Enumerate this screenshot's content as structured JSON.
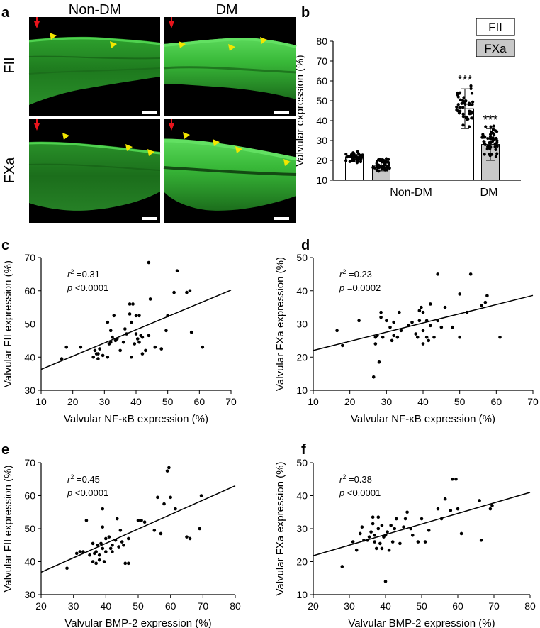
{
  "panel_a": {
    "letter": "a",
    "col_labels": [
      "Non-DM",
      "DM"
    ],
    "row_labels": [
      "FII",
      "FXa"
    ],
    "colors": {
      "tissue": "#2fa82f",
      "bright": "#4fd24f",
      "dark": "#0a2a0a",
      "arrowhead": "#f2e600",
      "arrow": "#e8141c"
    }
  },
  "chart_data": [
    {
      "id": "b",
      "letter": "b",
      "type": "bar",
      "title": "",
      "xlabel": "",
      "ylabel": "Valvular expression (%)",
      "ylim": [
        10,
        80
      ],
      "yticks": [
        10,
        20,
        30,
        40,
        50,
        60,
        70,
        80
      ],
      "groups": [
        "Non-DM",
        "DM"
      ],
      "series": [
        {
          "name": "FII",
          "color": "#ffffff",
          "values": [
            21.5,
            46
          ],
          "sd": [
            2.2,
            10
          ]
        },
        {
          "name": "FXa",
          "color": "#c8c8c8",
          "values": [
            17.5,
            28
          ],
          "sd": [
            2.8,
            8
          ]
        }
      ],
      "annotations": [
        {
          "text": "***",
          "group": 1,
          "series": 0
        },
        {
          "text": "***",
          "group": 1,
          "series": 1
        }
      ]
    },
    {
      "id": "c",
      "letter": "c",
      "type": "scatter",
      "xlabel": "Valvular NF-κB expression (%)",
      "ylabel": "Valvular FII expression (%)",
      "xlim": [
        10,
        70
      ],
      "ylim": [
        30,
        70
      ],
      "xticks": [
        10,
        20,
        30,
        40,
        50,
        60,
        70
      ],
      "yticks": [
        30,
        40,
        50,
        60,
        70
      ],
      "r2_label": "r",
      "r2_value": "=0.31",
      "p_label": "p",
      "p_value": "<0.0001",
      "fit": [
        [
          10,
          36.3
        ],
        [
          70,
          60.2
        ]
      ],
      "points": [
        [
          16.5,
          39.5
        ],
        [
          18,
          43
        ],
        [
          22.5,
          43
        ],
        [
          26.5,
          40
        ],
        [
          27,
          42
        ],
        [
          27.5,
          41
        ],
        [
          28,
          41
        ],
        [
          28.5,
          42.5
        ],
        [
          28,
          39.5
        ],
        [
          29.5,
          40.5
        ],
        [
          31,
          40
        ],
        [
          31.5,
          44
        ],
        [
          31,
          50.5
        ],
        [
          32,
          44.5
        ],
        [
          32,
          48
        ],
        [
          32.5,
          46
        ],
        [
          33,
          52.5
        ],
        [
          33.5,
          45
        ],
        [
          34,
          45.5
        ],
        [
          35,
          42
        ],
        [
          36,
          44.5
        ],
        [
          36.5,
          48.5
        ],
        [
          37,
          47
        ],
        [
          38,
          53
        ],
        [
          38,
          56
        ],
        [
          38.5,
          50.5
        ],
        [
          39,
          56
        ],
        [
          38.5,
          40
        ],
        [
          39.5,
          44
        ],
        [
          40,
          47
        ],
        [
          40,
          52.5
        ],
        [
          40.5,
          45.5
        ],
        [
          41,
          44.5
        ],
        [
          41.5,
          46.5
        ],
        [
          41,
          52.5
        ],
        [
          42,
          41
        ],
        [
          42,
          46
        ],
        [
          43,
          42
        ],
        [
          44,
          46.5
        ],
        [
          44,
          68.5
        ],
        [
          44.5,
          57.5
        ],
        [
          46,
          43
        ],
        [
          48,
          42.5
        ],
        [
          49.5,
          48
        ],
        [
          50,
          52.5
        ],
        [
          52,
          59.5
        ],
        [
          53,
          66
        ],
        [
          56,
          59.5
        ],
        [
          57,
          60
        ],
        [
          57.5,
          47.5
        ],
        [
          61,
          43
        ]
      ]
    },
    {
      "id": "d",
      "letter": "d",
      "type": "scatter",
      "xlabel": "Valvular NF-κB expression (%)",
      "ylabel": "Valvular FXa expression (%)",
      "xlim": [
        10,
        70
      ],
      "ylim": [
        10,
        50
      ],
      "xticks": [
        10,
        20,
        30,
        40,
        50,
        60,
        70
      ],
      "yticks": [
        10,
        20,
        30,
        40,
        50
      ],
      "r2_label": "r",
      "r2_value": "=0.23",
      "p_label": "p",
      "p_value": "=0.0002",
      "fit": [
        [
          10,
          22.0
        ],
        [
          70,
          38.6
        ]
      ],
      "points": [
        [
          16.5,
          28
        ],
        [
          18,
          23.5
        ],
        [
          22.5,
          31
        ],
        [
          26.5,
          14
        ],
        [
          27,
          26
        ],
        [
          27,
          24
        ],
        [
          27.5,
          26.5
        ],
        [
          28,
          18.5
        ],
        [
          28.5,
          32
        ],
        [
          28.5,
          33.5
        ],
        [
          29,
          26
        ],
        [
          30,
          31
        ],
        [
          31,
          29
        ],
        [
          31.5,
          25
        ],
        [
          32,
          30.5
        ],
        [
          32,
          26.5
        ],
        [
          33,
          26
        ],
        [
          33.5,
          33.5
        ],
        [
          34,
          28
        ],
        [
          36,
          29.5
        ],
        [
          37,
          30.5
        ],
        [
          38,
          27
        ],
        [
          38.5,
          26
        ],
        [
          39,
          31
        ],
        [
          39,
          34
        ],
        [
          39.5,
          35
        ],
        [
          40,
          33.5
        ],
        [
          40,
          24
        ],
        [
          40,
          28
        ],
        [
          41,
          31
        ],
        [
          41,
          26
        ],
        [
          41.5,
          25
        ],
        [
          42,
          29.5
        ],
        [
          42,
          36
        ],
        [
          43,
          26
        ],
        [
          44,
          31
        ],
        [
          44,
          45
        ],
        [
          45,
          29
        ],
        [
          46,
          35
        ],
        [
          48,
          29
        ],
        [
          50,
          39
        ],
        [
          50,
          26
        ],
        [
          52,
          33.5
        ],
        [
          53,
          45
        ],
        [
          56,
          35.5
        ],
        [
          57,
          36.5
        ],
        [
          57.5,
          38.5
        ],
        [
          61,
          26
        ]
      ]
    },
    {
      "id": "e",
      "letter": "e",
      "type": "scatter",
      "xlabel": "Valvular BMP-2 expression (%)",
      "ylabel": "Valvular FII expression (%)",
      "xlim": [
        20,
        80
      ],
      "ylim": [
        30,
        70
      ],
      "xticks": [
        20,
        30,
        40,
        50,
        60,
        70,
        80
      ],
      "yticks": [
        30,
        40,
        50,
        60,
        70
      ],
      "r2_label": "r",
      "r2_value": "=0.45",
      "p_label": "p",
      "p_value": "<0.0001",
      "fit": [
        [
          20,
          36.8
        ],
        [
          80,
          63
        ]
      ],
      "points": [
        [
          28,
          38
        ],
        [
          31,
          42.5
        ],
        [
          32,
          43
        ],
        [
          33,
          43
        ],
        [
          34,
          52.5
        ],
        [
          35,
          42
        ],
        [
          36,
          45.5
        ],
        [
          36,
          40
        ],
        [
          36.5,
          42.5
        ],
        [
          37,
          39.5
        ],
        [
          37,
          43
        ],
        [
          37.5,
          45
        ],
        [
          38,
          42
        ],
        [
          38,
          40.5
        ],
        [
          38.5,
          45.5
        ],
        [
          39,
          44
        ],
        [
          39,
          56
        ],
        [
          39,
          50.5
        ],
        [
          39.5,
          40
        ],
        [
          40,
          43
        ],
        [
          40,
          47
        ],
        [
          41,
          47.5
        ],
        [
          41.5,
          44
        ],
        [
          42,
          45
        ],
        [
          42,
          43
        ],
        [
          43,
          46.5
        ],
        [
          43.5,
          53
        ],
        [
          44,
          44.5
        ],
        [
          44.5,
          49.5
        ],
        [
          45,
          46
        ],
        [
          45.5,
          45
        ],
        [
          46,
          39.5
        ],
        [
          47,
          39.5
        ],
        [
          47,
          47
        ],
        [
          50,
          52.5
        ],
        [
          51,
          52.5
        ],
        [
          52,
          52
        ],
        [
          55,
          49.5
        ],
        [
          56,
          59.5
        ],
        [
          57,
          48.5
        ],
        [
          58,
          57.5
        ],
        [
          59,
          67.5
        ],
        [
          59.5,
          68.5
        ],
        [
          60,
          59.5
        ],
        [
          61.5,
          56
        ],
        [
          65,
          47.5
        ],
        [
          66,
          47
        ],
        [
          69,
          50
        ],
        [
          69.5,
          60
        ]
      ]
    },
    {
      "id": "f",
      "letter": "f",
      "type": "scatter",
      "xlabel": "Valvular BMP-2 expression (%)",
      "ylabel": "Valvular FXa expression (%)",
      "xlim": [
        20,
        80
      ],
      "ylim": [
        10,
        50
      ],
      "xticks": [
        20,
        30,
        40,
        50,
        60,
        70,
        80
      ],
      "yticks": [
        10,
        20,
        30,
        40,
        50
      ],
      "r2_label": "r",
      "r2_value": "=0.38",
      "p_label": "p",
      "p_value": "<0.0001",
      "fit": [
        [
          20,
          21.8
        ],
        [
          80,
          41
        ]
      ],
      "points": [
        [
          28,
          18.5
        ],
        [
          31,
          26
        ],
        [
          32,
          23.5
        ],
        [
          33,
          28.5
        ],
        [
          33.5,
          30.5
        ],
        [
          34,
          26.5
        ],
        [
          35,
          26.5
        ],
        [
          35.5,
          27.5
        ],
        [
          36,
          29
        ],
        [
          36.5,
          31.5
        ],
        [
          36.5,
          33.5
        ],
        [
          37,
          28
        ],
        [
          37,
          26
        ],
        [
          37.5,
          24
        ],
        [
          38,
          30
        ],
        [
          38,
          33.5
        ],
        [
          38.5,
          25.5
        ],
        [
          39,
          31
        ],
        [
          39,
          24
        ],
        [
          39.5,
          27.5
        ],
        [
          40,
          14
        ],
        [
          40,
          28
        ],
        [
          40.5,
          29
        ],
        [
          41,
          23.5
        ],
        [
          41.5,
          31
        ],
        [
          42,
          26
        ],
        [
          42.5,
          30
        ],
        [
          43,
          33
        ],
        [
          44,
          25.5
        ],
        [
          45,
          30.5
        ],
        [
          45.5,
          33
        ],
        [
          46,
          35
        ],
        [
          47,
          30
        ],
        [
          47.5,
          28
        ],
        [
          49,
          26
        ],
        [
          50,
          33
        ],
        [
          51,
          26
        ],
        [
          52,
          29.5
        ],
        [
          54.5,
          36
        ],
        [
          55.5,
          33
        ],
        [
          56.5,
          39
        ],
        [
          58,
          35.5
        ],
        [
          58.5,
          45
        ],
        [
          59.5,
          45
        ],
        [
          60,
          36
        ],
        [
          61,
          28.5
        ],
        [
          66,
          38.5
        ],
        [
          66.5,
          26.5
        ],
        [
          69,
          36
        ],
        [
          69.5,
          37
        ]
      ]
    }
  ]
}
